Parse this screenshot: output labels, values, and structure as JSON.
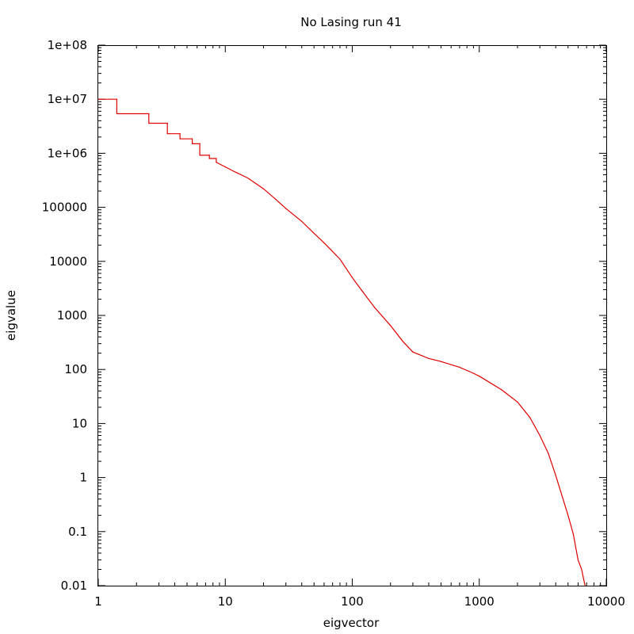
{
  "chart_data": {
    "type": "line",
    "title": "No Lasing run 41",
    "xlabel": "eigvector",
    "ylabel": "eigvalue",
    "xscale": "log",
    "yscale": "log",
    "xlim": [
      1,
      10000
    ],
    "ylim": [
      0.01,
      100000000
    ],
    "xticks": [
      1,
      10,
      100,
      1000,
      10000
    ],
    "xtick_labels": [
      "1",
      "10",
      "100",
      "1000",
      "10000"
    ],
    "yticks": [
      0.01,
      0.1,
      1,
      10,
      100,
      1000,
      10000,
      100000,
      1000000,
      10000000,
      100000000
    ],
    "ytick_labels": [
      "0.01",
      "0.1",
      "1",
      "10",
      "100",
      "1000",
      "10000",
      "100000",
      "1e+06",
      "1e+07",
      "1e+08"
    ],
    "grid": false,
    "legend": "none",
    "series": [
      {
        "color": "#e00000",
        "step": true,
        "points": [
          [
            1,
            10000000
          ],
          [
            1.4,
            10000000
          ],
          [
            1.4,
            5400000
          ],
          [
            2.5,
            5400000
          ],
          [
            2.5,
            3600000
          ],
          [
            3.5,
            3600000
          ],
          [
            3.5,
            2300000
          ],
          [
            4.4,
            2300000
          ],
          [
            4.4,
            1850000
          ],
          [
            5.5,
            1850000
          ],
          [
            5.5,
            1500000
          ],
          [
            6.3,
            1500000
          ],
          [
            6.3,
            920000
          ],
          [
            7.5,
            920000
          ],
          [
            7.5,
            800000
          ],
          [
            8.5,
            800000
          ],
          [
            8.5,
            680000
          ],
          [
            10,
            560000
          ],
          [
            12,
            450000
          ],
          [
            15,
            350000
          ],
          [
            20,
            220000
          ],
          [
            25,
            140000
          ],
          [
            30,
            95000
          ],
          [
            40,
            55000
          ],
          [
            50,
            33000
          ],
          [
            60,
            22000
          ],
          [
            80,
            11000
          ],
          [
            100,
            5000
          ],
          [
            120,
            2800
          ],
          [
            150,
            1400
          ],
          [
            200,
            650
          ],
          [
            250,
            330
          ],
          [
            300,
            210
          ],
          [
            400,
            160
          ],
          [
            500,
            140
          ],
          [
            700,
            110
          ],
          [
            900,
            85
          ],
          [
            1000,
            75
          ],
          [
            1200,
            58
          ],
          [
            1500,
            42
          ],
          [
            2000,
            25
          ],
          [
            2500,
            13
          ],
          [
            3000,
            6
          ],
          [
            3500,
            2.8
          ],
          [
            4000,
            1.1
          ],
          [
            4500,
            0.45
          ],
          [
            5000,
            0.2
          ],
          [
            5500,
            0.09
          ],
          [
            6000,
            0.03
          ],
          [
            6400,
            0.02
          ],
          [
            6800,
            0.01
          ]
        ]
      }
    ]
  }
}
